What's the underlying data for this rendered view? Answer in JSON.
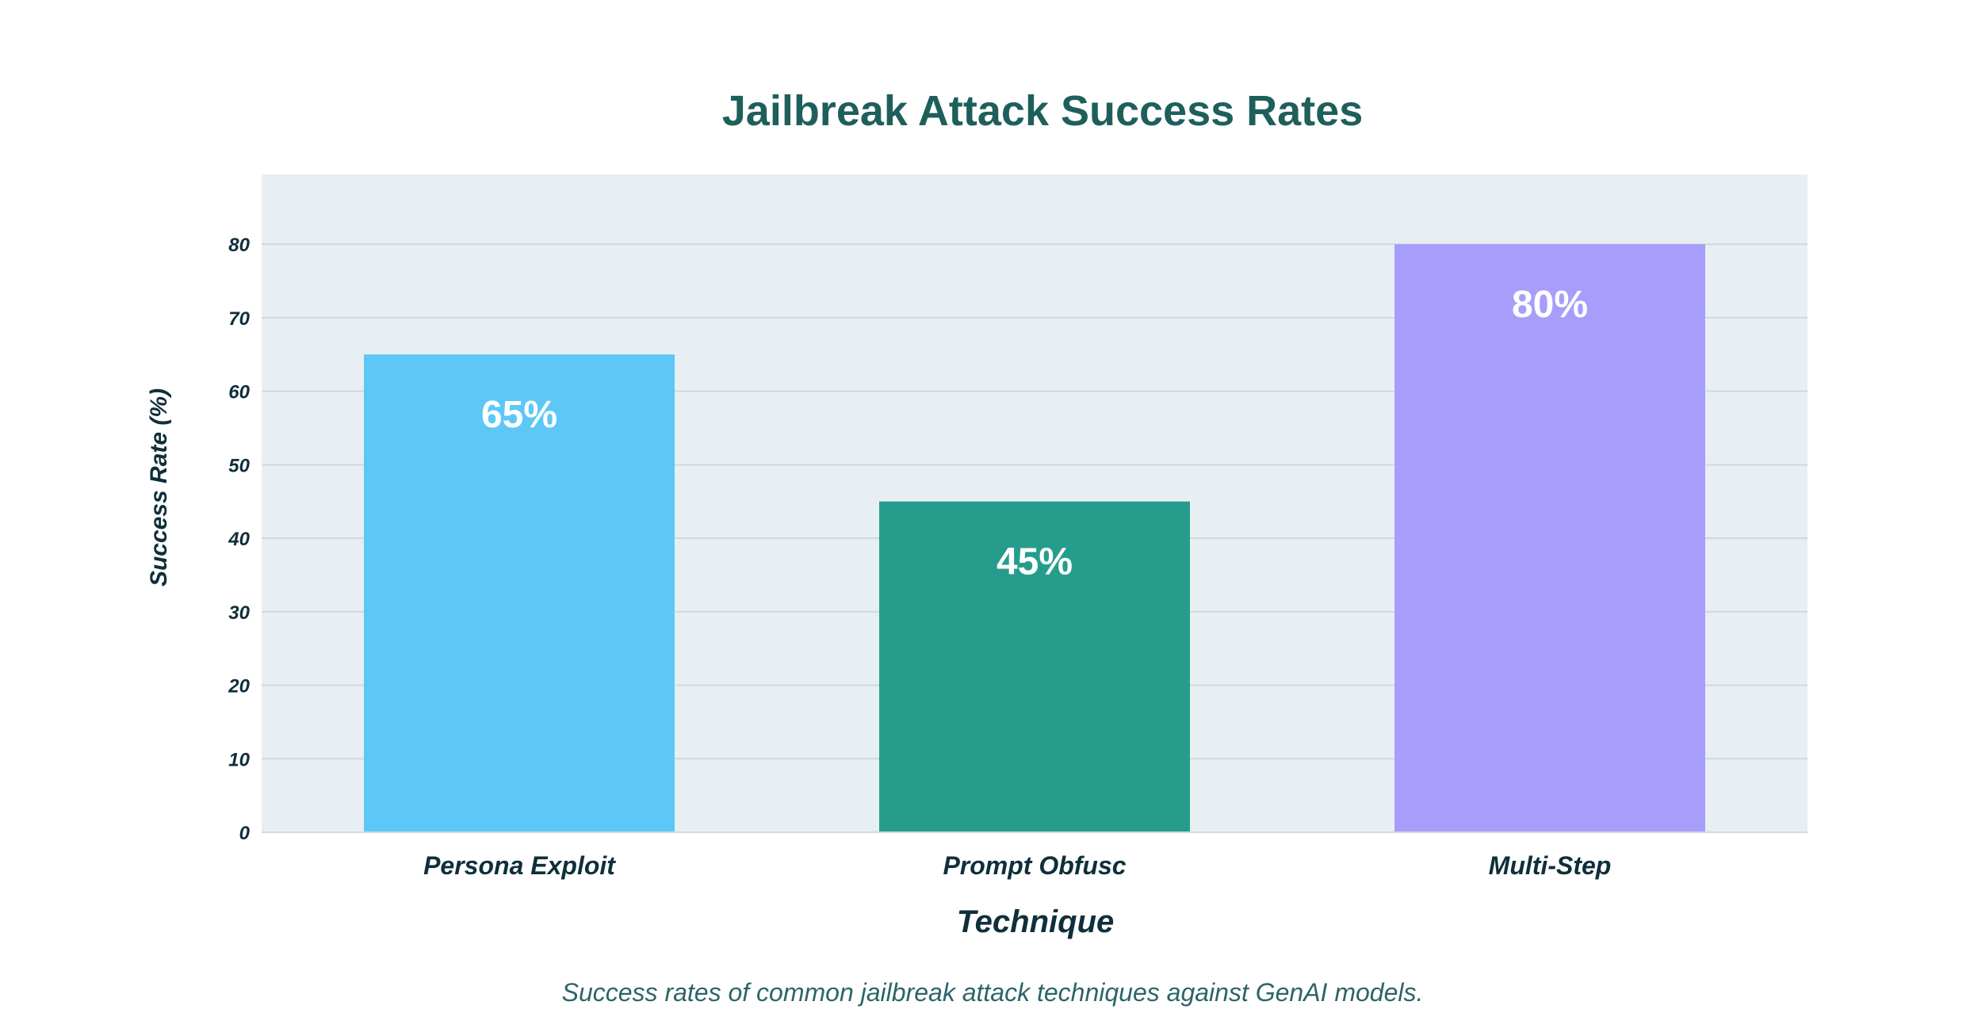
{
  "chart_data": {
    "type": "bar",
    "title": "Jailbreak Attack Success Rates",
    "xlabel": "Technique",
    "ylabel": "Success Rate (%)",
    "categories": [
      "Persona Exploit",
      "Prompt Obfusc",
      "Multi-Step"
    ],
    "values": [
      65,
      45,
      80
    ],
    "data_labels": [
      "65%",
      "45%",
      "80%"
    ],
    "colors": [
      "#5dc8f8",
      "#269d8c",
      "#a99dfb"
    ],
    "yticks": [
      "0",
      "10",
      "20",
      "30",
      "40",
      "50",
      "60",
      "70",
      "80"
    ],
    "ylim": [
      0,
      89.5
    ],
    "grid": true,
    "plot_background": "#e8eff2",
    "caption": "Success rates of common jailbreak attack techniques against GenAI models."
  }
}
